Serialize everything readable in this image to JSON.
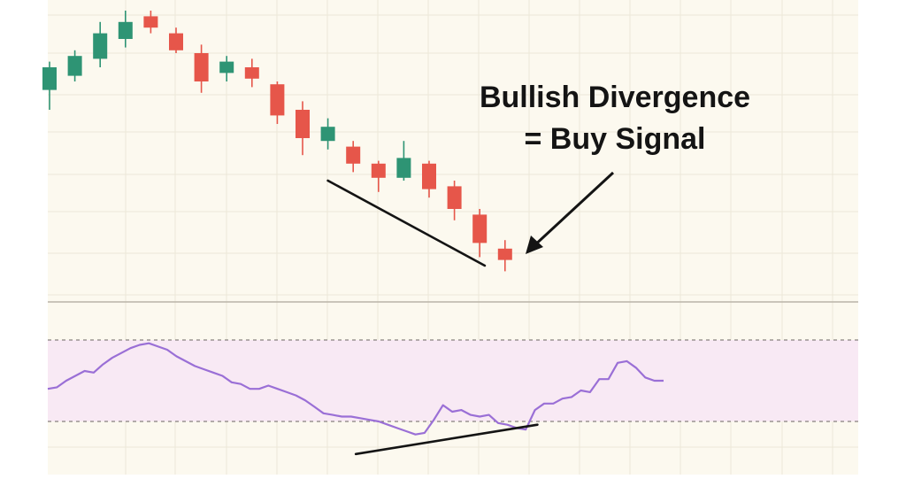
{
  "colors": {
    "background": "#fcf9ef",
    "panel_bg": "#fcf9ef",
    "grid": "#ece7d8",
    "up": "#2e9474",
    "down": "#e6564a",
    "wick_up": "#2e9474",
    "wick_down": "#e6564a",
    "oscillator_line": "#9a6fd6",
    "oscillator_band": "#f8e9f4",
    "divergence_line": "#141414",
    "separator": "#b9b4a8",
    "level_line": "#6a6560"
  },
  "annotation": {
    "line1": "Bullish Divergence",
    "line2": "= Buy Signal"
  },
  "chart_data": [
    {
      "type": "candlestick",
      "title": "",
      "xlabel": "",
      "ylabel": "",
      "grid": true,
      "ylim": [
        0,
        100
      ],
      "candles": [
        {
          "open": 72,
          "close": 80,
          "high": 82,
          "low": 65
        },
        {
          "open": 77,
          "close": 84,
          "high": 86,
          "low": 75
        },
        {
          "open": 83,
          "close": 92,
          "high": 96,
          "low": 80
        },
        {
          "open": 90,
          "close": 96,
          "high": 100,
          "low": 87
        },
        {
          "open": 98,
          "close": 94,
          "high": 100,
          "low": 92
        },
        {
          "open": 92,
          "close": 86,
          "high": 94,
          "low": 85
        },
        {
          "open": 85,
          "close": 75,
          "high": 88,
          "low": 71
        },
        {
          "open": 78,
          "close": 82,
          "high": 84,
          "low": 75
        },
        {
          "open": 80,
          "close": 76,
          "high": 83,
          "low": 73
        },
        {
          "open": 74,
          "close": 63,
          "high": 75,
          "low": 60
        },
        {
          "open": 65,
          "close": 55,
          "high": 68,
          "low": 49
        },
        {
          "open": 54,
          "close": 59,
          "high": 62,
          "low": 51
        },
        {
          "open": 52,
          "close": 46,
          "high": 54,
          "low": 43
        },
        {
          "open": 46,
          "close": 41,
          "high": 47,
          "low": 36
        },
        {
          "open": 41,
          "close": 48,
          "high": 54,
          "low": 40
        },
        {
          "open": 46,
          "close": 37,
          "high": 47,
          "low": 34
        },
        {
          "open": 38,
          "close": 30,
          "high": 40,
          "low": 26
        },
        {
          "open": 28,
          "close": 18,
          "high": 30,
          "low": 13
        },
        {
          "open": 16,
          "close": 12,
          "high": 19,
          "low": 8
        }
      ],
      "trendline": [
        {
          "index": 11.0,
          "value": 40
        },
        {
          "index": 17.2,
          "value": 10
        }
      ]
    },
    {
      "type": "line",
      "title": "",
      "xlabel": "",
      "ylabel": "",
      "ylim": [
        0,
        100
      ],
      "band": [
        25,
        75
      ],
      "series": [
        {
          "values": [
            45,
            46,
            50,
            53,
            56,
            55,
            60,
            64,
            67,
            70,
            72,
            73,
            71,
            69,
            65,
            62,
            59,
            57,
            55,
            53,
            49,
            48,
            45,
            45,
            47,
            45,
            43,
            41,
            38,
            34,
            30,
            29,
            28,
            28,
            27,
            26,
            25,
            23,
            21,
            19,
            17,
            18,
            26,
            35,
            31,
            32,
            29,
            28,
            29,
            24,
            23,
            21,
            20,
            32,
            36,
            36,
            39,
            40,
            44,
            43,
            51,
            51,
            61,
            62,
            58,
            52,
            50,
            50
          ]
        }
      ],
      "trendline": [
        {
          "index": 0.34,
          "value": 5
        },
        {
          "index": 0.56,
          "value": 23
        }
      ]
    }
  ]
}
